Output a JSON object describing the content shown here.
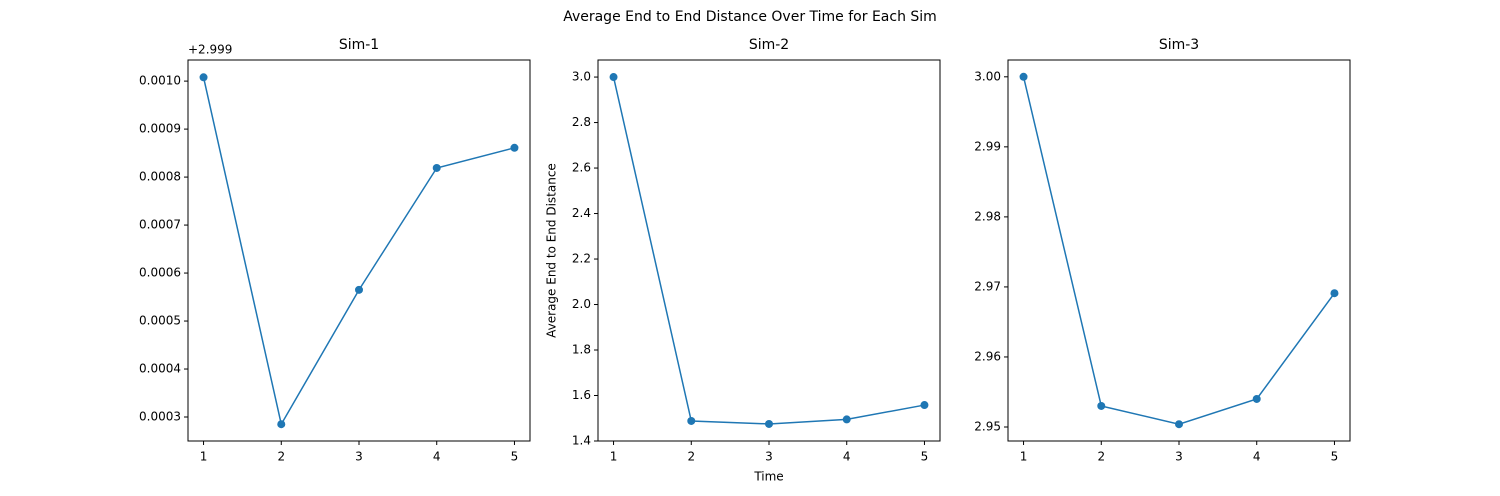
{
  "title": "Average End to End Distance Over Time for Each Sim",
  "chart_data": [
    {
      "type": "line",
      "title": "Sim-1",
      "offset_label": "+2.999",
      "x": [
        1,
        2,
        3,
        4,
        5
      ],
      "series": [
        {
          "color": "#1f77b4",
          "values": [
            0.001008,
            0.000285,
            0.000565,
            0.000819,
            0.000861
          ]
        }
      ],
      "xlim": [
        0.8,
        5.2
      ],
      "xticks": [
        1,
        2,
        3,
        4,
        5
      ],
      "ylim": [
        0.00025,
        0.001044
      ],
      "yticks": [
        0.0003,
        0.0004,
        0.0005,
        0.0006,
        0.0007,
        0.0008,
        0.0009,
        {
          "value": 0.001,
          "label": "0.0010"
        }
      ],
      "markers": true
    },
    {
      "type": "line",
      "title": "Sim-2",
      "xlabel": "Time",
      "ylabel": "Average End to End Distance",
      "x": [
        1,
        2,
        3,
        4,
        5
      ],
      "series": [
        {
          "color": "#1f77b4",
          "values": [
            3.0,
            1.488,
            1.475,
            1.495,
            1.558
          ]
        }
      ],
      "xlim": [
        0.8,
        5.2
      ],
      "xticks": [
        1,
        2,
        3,
        4,
        5
      ],
      "ylim": [
        1.4,
        3.075
      ],
      "yticks": [
        1.4,
        1.6,
        1.8,
        {
          "value": 2,
          "label": "2.0"
        },
        2.2,
        2.4,
        2.6,
        2.8,
        {
          "value": 3,
          "label": "3.0"
        }
      ],
      "markers": true
    },
    {
      "type": "line",
      "title": "Sim-3",
      "x": [
        1,
        2,
        3,
        4,
        5
      ],
      "series": [
        {
          "color": "#1f77b4",
          "values": [
            3.0,
            2.953,
            2.9504,
            2.954,
            2.9691
          ]
        }
      ],
      "xlim": [
        0.8,
        5.2
      ],
      "xticks": [
        1,
        2,
        3,
        4,
        5
      ],
      "ylim": [
        2.948,
        3.0024
      ],
      "yticks": [
        2.95,
        2.96,
        2.97,
        2.98,
        2.99,
        {
          "value": 3,
          "label": "3.00"
        }
      ],
      "markers": true
    }
  ]
}
